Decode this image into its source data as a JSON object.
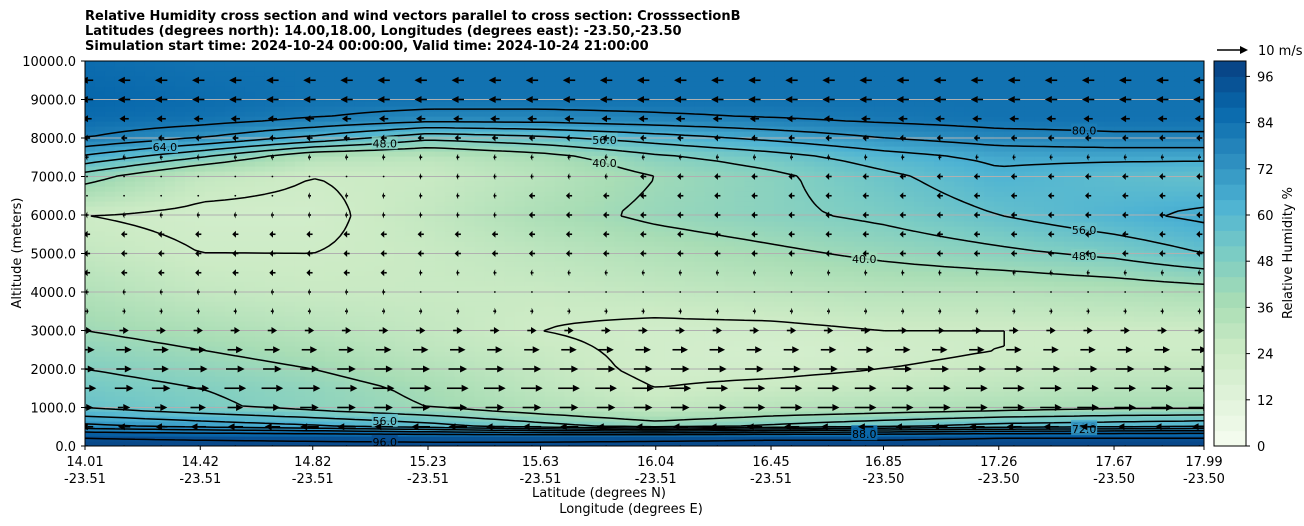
{
  "titles": [
    "Relative Humidity cross section and wind vectors parallel to cross section: CrosssectionB",
    "Latitudes (degrees north): 14.00,18.00, Longitudes (degrees east): -23.50,-23.50",
    "Simulation start time: 2024-10-24 00:00:00, Valid time: 2024-10-24 21:00:00"
  ],
  "chart_data": {
    "type": "heatmap",
    "ylabel": "Altitude (meters)",
    "xlabel_lines": [
      "Latitude (degrees N)",
      "Longitude (degrees E)"
    ],
    "ylim": [
      0,
      10000
    ],
    "y_ticks": [
      "0.0",
      "1000.0",
      "2000.0",
      "3000.0",
      "4000.0",
      "5000.0",
      "6000.0",
      "7000.0",
      "8000.0",
      "9000.0",
      "10000.0"
    ],
    "y_tick_values": [
      0,
      1000,
      2000,
      3000,
      4000,
      5000,
      6000,
      7000,
      8000,
      9000,
      10000
    ],
    "x_range": [
      14.01,
      17.99
    ],
    "x_ticks": [
      {
        "lat": "14.01",
        "lon": "-23.51",
        "value": 14.01
      },
      {
        "lat": "14.42",
        "lon": "-23.51",
        "value": 14.42
      },
      {
        "lat": "14.82",
        "lon": "-23.51",
        "value": 14.82
      },
      {
        "lat": "15.23",
        "lon": "-23.51",
        "value": 15.23
      },
      {
        "lat": "15.63",
        "lon": "-23.51",
        "value": 15.63
      },
      {
        "lat": "16.04",
        "lon": "-23.51",
        "value": 16.04
      },
      {
        "lat": "16.45",
        "lon": "-23.51",
        "value": 16.45
      },
      {
        "lat": "16.85",
        "lon": "-23.50",
        "value": 16.85
      },
      {
        "lat": "17.26",
        "lon": "-23.50",
        "value": 17.26
      },
      {
        "lat": "17.67",
        "lon": "-23.50",
        "value": 17.67
      },
      {
        "lat": "17.99",
        "lon": "-23.50",
        "value": 17.99
      }
    ],
    "grid": "horizontal",
    "colorbar": {
      "label": "Relative Humidity %",
      "ticks": [
        "0",
        "12",
        "24",
        "36",
        "48",
        "60",
        "72",
        "84",
        "96"
      ],
      "tick_values": [
        0,
        12,
        24,
        36,
        48,
        60,
        72,
        84,
        96
      ],
      "range": [
        0,
        100
      ],
      "colormap": "GnBu",
      "colors": [
        "#f7fcf0",
        "#e0f3db",
        "#ccebc5",
        "#a8ddb5",
        "#7bccc4",
        "#4eb3d3",
        "#2b8cbe",
        "#0868ac",
        "#084081"
      ]
    },
    "quiver_key": {
      "label": "10 m/s",
      "speed": 10
    },
    "contour_labels": [
      "24.0",
      "40.0",
      "48.0",
      "56.0",
      "64.0",
      "72.0",
      "80.0",
      "88.0",
      "96.0"
    ],
    "rh_field": {
      "x": [
        14.01,
        14.42,
        14.82,
        15.23,
        15.63,
        16.04,
        16.45,
        16.85,
        17.26,
        17.67,
        17.99
      ],
      "y": [
        0,
        300,
        500,
        1000,
        1500,
        2000,
        2500,
        3000,
        4000,
        5000,
        6000,
        7000,
        7500,
        8000,
        8500,
        9000,
        10000
      ],
      "values": [
        [
          98,
          98,
          98,
          98,
          98,
          98,
          98,
          98,
          98,
          98,
          98
        ],
        [
          95,
          94,
          93,
          92,
          92,
          93,
          94,
          94,
          95,
          95,
          95
        ],
        [
          75,
          70,
          66,
          60,
          52,
          45,
          50,
          55,
          60,
          62,
          64
        ],
        [
          55,
          50,
          45,
          40,
          34,
          28,
          32,
          34,
          36,
          38,
          38
        ],
        [
          52,
          48,
          44,
          38,
          30,
          24,
          26,
          28,
          30,
          32,
          32
        ],
        [
          48,
          44,
          40,
          34,
          28,
          22,
          22,
          24,
          26,
          28,
          28
        ],
        [
          44,
          40,
          36,
          30,
          26,
          22,
          20,
          22,
          24,
          24,
          24
        ],
        [
          40,
          36,
          32,
          28,
          24,
          22,
          22,
          24,
          24,
          24,
          24
        ],
        [
          34,
          28,
          26,
          26,
          26,
          28,
          30,
          32,
          32,
          34,
          36
        ],
        [
          28,
          24,
          24,
          26,
          30,
          34,
          38,
          42,
          46,
          50,
          56
        ],
        [
          24,
          22,
          22,
          28,
          36,
          42,
          46,
          50,
          56,
          62,
          66
        ],
        [
          44,
          28,
          24,
          26,
          32,
          40,
          46,
          54,
          62,
          58,
          56
        ],
        [
          62,
          48,
          32,
          30,
          36,
          46,
          52,
          60,
          66,
          66,
          66
        ],
        [
          80,
          72,
          62,
          50,
          54,
          60,
          66,
          72,
          76,
          78,
          78
        ],
        [
          86,
          84,
          80,
          76,
          76,
          78,
          80,
          82,
          84,
          84,
          84
        ],
        [
          88,
          86,
          84,
          84,
          84,
          84,
          84,
          84,
          84,
          84,
          84
        ],
        [
          86,
          84,
          84,
          84,
          84,
          84,
          84,
          84,
          84,
          84,
          84
        ]
      ]
    },
    "wind_u_ms": {
      "y": [
        0,
        500,
        1000,
        1500,
        2000,
        2500,
        3000,
        3500,
        4000,
        4500,
        5000,
        5500,
        6000,
        6500,
        7000,
        7500,
        8000,
        8500,
        9000,
        9500
      ],
      "values": [
        [
          0,
          0,
          0,
          0,
          0,
          0,
          0,
          0,
          0,
          0,
          0
        ],
        [
          -4,
          -5,
          -6,
          -6,
          -6,
          -5,
          -5,
          -5,
          -5,
          -5,
          -5
        ],
        [
          4,
          5,
          6,
          6,
          6,
          6,
          7,
          7,
          7,
          7,
          7
        ],
        [
          6,
          7,
          7,
          7,
          7,
          7,
          7,
          7,
          7,
          7,
          7
        ],
        [
          5,
          6,
          6,
          6,
          6,
          6,
          6,
          6,
          6,
          6,
          6
        ],
        [
          5,
          5,
          5,
          5,
          5,
          5,
          5,
          5,
          5,
          5,
          5
        ],
        [
          3,
          3,
          3,
          3,
          3,
          3,
          3,
          3,
          3,
          3,
          3
        ],
        [
          1,
          1,
          1,
          1,
          1,
          1,
          1,
          1,
          1,
          1,
          1
        ],
        [
          -1,
          -1,
          -1,
          0,
          0,
          0,
          0,
          0,
          0,
          0,
          0
        ],
        [
          -2,
          -2,
          -2,
          -1,
          -1,
          -1,
          -1,
          -1,
          -1,
          -1,
          -1
        ],
        [
          -2,
          -2,
          -2,
          -2,
          -2,
          -2,
          -2,
          -2,
          -2,
          -2,
          -2
        ],
        [
          -2,
          -2,
          -2,
          -2,
          -2,
          -2,
          -2,
          -2,
          -2,
          -2,
          -2
        ],
        [
          -1,
          -1,
          -1,
          -1,
          -2,
          -2,
          -2,
          -2,
          -2,
          -2,
          -2
        ],
        [
          0,
          0,
          -1,
          -1,
          -2,
          -2,
          -2,
          -2,
          -2,
          -2,
          -2
        ],
        [
          0,
          0,
          0,
          -1,
          -1,
          -2,
          -2,
          -2,
          -2,
          -2,
          -2
        ],
        [
          -1,
          -1,
          -1,
          -1,
          -1,
          -1,
          -1,
          -1,
          -1,
          -1,
          -1
        ],
        [
          -2,
          -2,
          -2,
          -2,
          -2,
          -2,
          -2,
          -2,
          -2,
          -2,
          -2
        ],
        [
          -3,
          -3,
          -3,
          -3,
          -3,
          -3,
          -3,
          -3,
          -3,
          -3,
          -3
        ],
        [
          -4,
          -4,
          -4,
          -4,
          -4,
          -4,
          -4,
          -4,
          -4,
          -4,
          -4
        ],
        [
          -4,
          -4,
          -4,
          -4,
          -4,
          -4,
          -4,
          -4,
          -4,
          -4,
          -4
        ]
      ]
    }
  }
}
